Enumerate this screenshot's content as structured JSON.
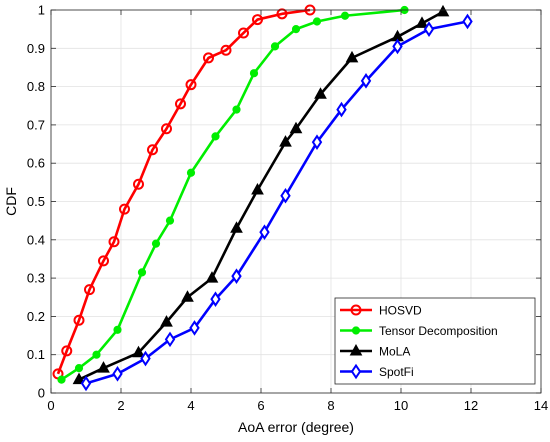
{
  "chart_data": {
    "type": "line",
    "title": "",
    "xlabel": "AoA error (degree)",
    "ylabel": "CDF",
    "xlim": [
      0,
      14
    ],
    "ylim": [
      0,
      1
    ],
    "xticks": [
      "0",
      "2",
      "4",
      "6",
      "8",
      "10",
      "12",
      "14"
    ],
    "yticks": [
      "0",
      "0.1",
      "0.2",
      "0.3",
      "0.4",
      "0.5",
      "0.6",
      "0.7",
      "0.8",
      "0.9",
      "1"
    ],
    "grid": true,
    "legend_position": "bottom-right",
    "series": [
      {
        "name": "HOSVD",
        "color": "#ff0000",
        "marker": "circle",
        "x": [
          0.2,
          0.45,
          0.8,
          1.1,
          1.5,
          1.8,
          2.1,
          2.5,
          2.9,
          3.3,
          3.7,
          4.0,
          4.5,
          5.0,
          5.5,
          5.9,
          6.6,
          7.4
        ],
        "y": [
          0.05,
          0.11,
          0.19,
          0.27,
          0.345,
          0.395,
          0.48,
          0.545,
          0.635,
          0.69,
          0.755,
          0.805,
          0.875,
          0.895,
          0.94,
          0.975,
          0.99,
          1.0
        ]
      },
      {
        "name": "Tensor Decomposition",
        "color": "#00ee00",
        "marker": "circle-filled",
        "x": [
          0.3,
          0.8,
          1.3,
          1.9,
          2.6,
          3.0,
          3.4,
          4.0,
          4.7,
          5.3,
          5.8,
          6.4,
          7.0,
          7.6,
          8.4,
          10.1
        ],
        "y": [
          0.035,
          0.065,
          0.1,
          0.165,
          0.315,
          0.39,
          0.45,
          0.575,
          0.67,
          0.74,
          0.835,
          0.905,
          0.95,
          0.97,
          0.985,
          1.0
        ]
      },
      {
        "name": "MoLA",
        "color": "#000000",
        "marker": "triangle",
        "x": [
          0.8,
          1.5,
          2.5,
          3.3,
          3.9,
          4.6,
          5.3,
          5.9,
          6.7,
          7.0,
          7.7,
          8.6,
          9.9,
          10.6,
          11.2
        ],
        "y": [
          0.035,
          0.065,
          0.105,
          0.185,
          0.25,
          0.3,
          0.43,
          0.53,
          0.655,
          0.69,
          0.78,
          0.875,
          0.93,
          0.965,
          0.995
        ]
      },
      {
        "name": "SpotFi",
        "color": "#0000ff",
        "marker": "diamond",
        "x": [
          1.0,
          1.9,
          2.7,
          3.4,
          4.1,
          4.7,
          5.3,
          6.1,
          6.7,
          7.6,
          8.3,
          9.0,
          9.9,
          10.8,
          11.9
        ],
        "y": [
          0.025,
          0.05,
          0.09,
          0.14,
          0.17,
          0.245,
          0.305,
          0.42,
          0.515,
          0.655,
          0.74,
          0.815,
          0.905,
          0.95,
          0.97
        ]
      }
    ]
  }
}
